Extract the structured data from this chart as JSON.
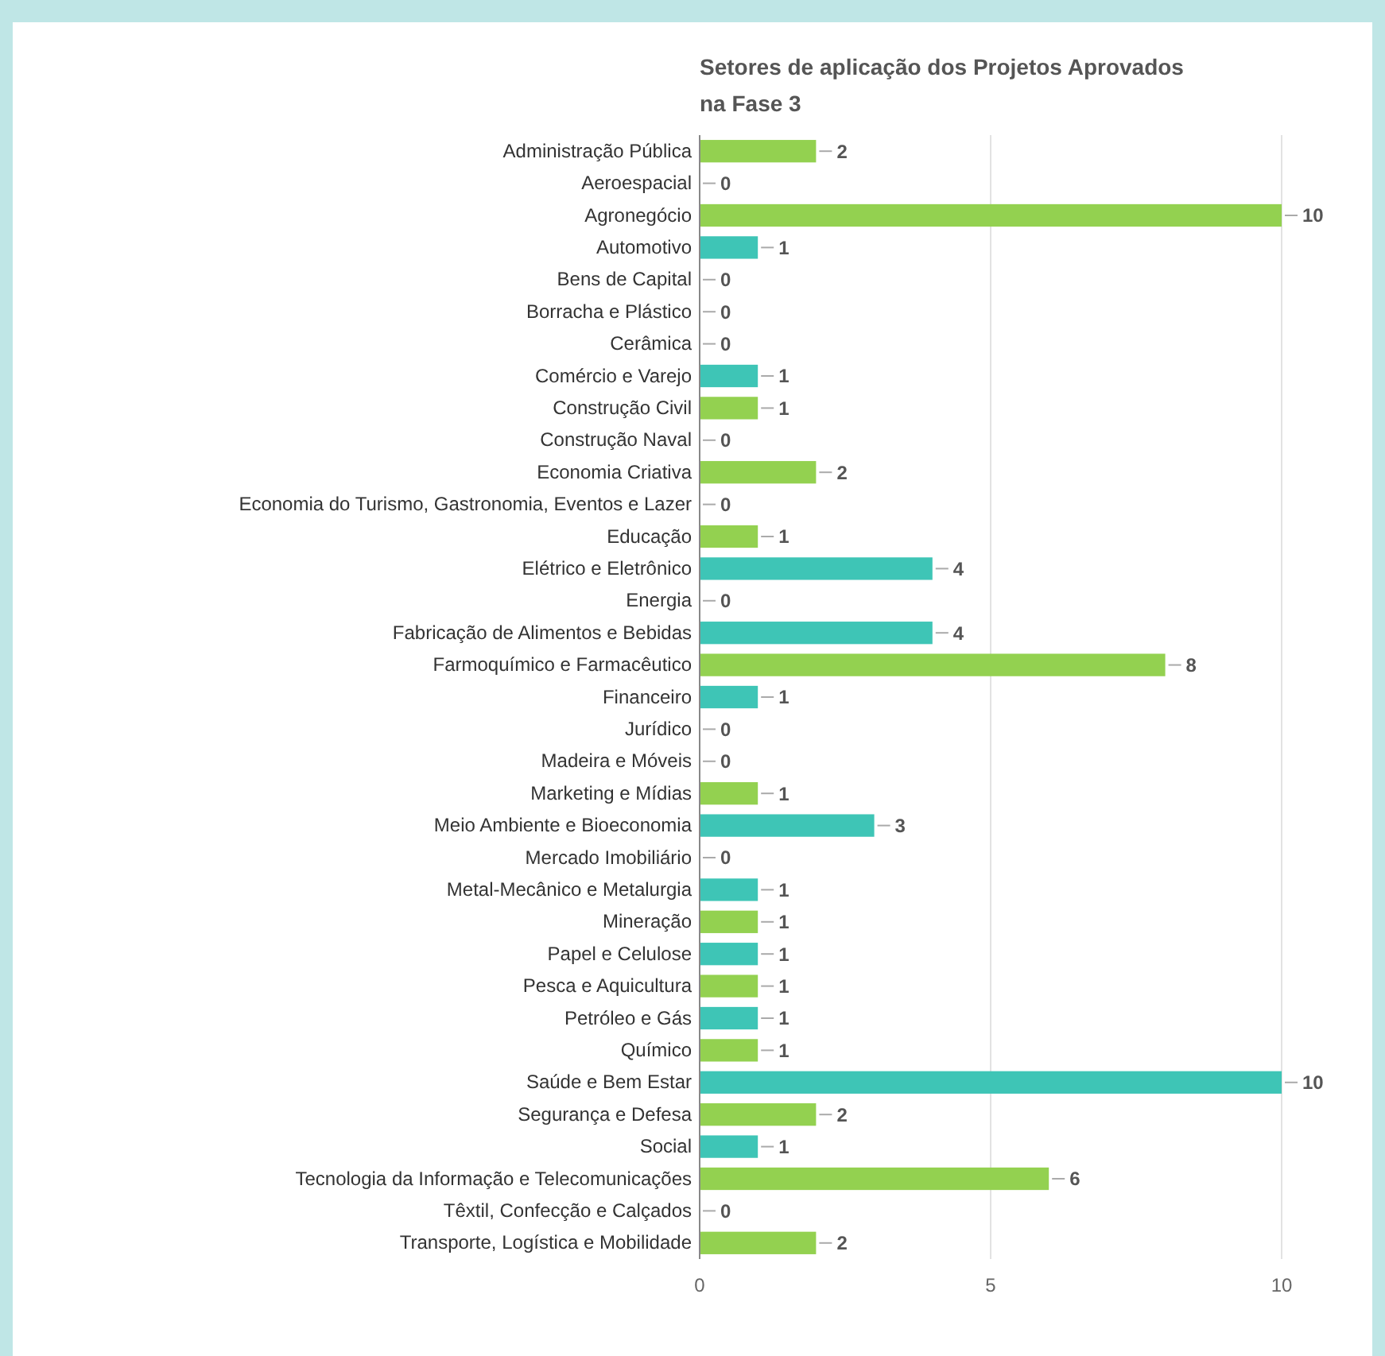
{
  "chart_data": {
    "type": "bar",
    "orientation": "horizontal",
    "title": "Setores de aplicação dos Projetos Aprovados na Fase 3",
    "categories": [
      "Administração Pública",
      "Aeroespacial",
      "Agronegócio",
      "Automotivo",
      "Bens de Capital",
      "Borracha e Plástico",
      "Cerâmica",
      "Comércio e Varejo",
      "Construção Civil",
      "Construção Naval",
      "Economia Criativa",
      "Economia do Turismo, Gastronomia, Eventos e Lazer",
      "Educação",
      "Elétrico e Eletrônico",
      "Energia",
      "Fabricação de Alimentos e Bebidas",
      "Farmoquímico e Farmacêutico",
      "Financeiro",
      "Jurídico",
      "Madeira e Móveis",
      "Marketing e Mídias",
      "Meio Ambiente e Bioeconomia",
      "Mercado Imobiliário",
      "Metal-Mecânico e Metalurgia",
      "Mineração",
      "Papel e Celulose",
      "Pesca e Aquicultura",
      "Petróleo e Gás",
      "Químico",
      "Saúde e Bem Estar",
      "Segurança e Defesa",
      "Social",
      "Tecnologia da Informação e Telecomunicações",
      "Têxtil, Confecção e Calçados",
      "Transporte, Logística e Mobilidade"
    ],
    "values": [
      2,
      0,
      10,
      1,
      0,
      0,
      0,
      1,
      1,
      0,
      2,
      0,
      1,
      4,
      0,
      4,
      8,
      1,
      0,
      0,
      1,
      3,
      0,
      1,
      1,
      1,
      1,
      1,
      1,
      10,
      2,
      1,
      6,
      0,
      2
    ],
    "colors": [
      "#93d150",
      "#3ec5b6",
      "#93d150",
      "#3ec5b6",
      "#3ec5b6",
      "#3ec5b6",
      "#3ec5b6",
      "#3ec5b6",
      "#93d150",
      "#3ec5b6",
      "#93d150",
      "#3ec5b6",
      "#93d150",
      "#3ec5b6",
      "#3ec5b6",
      "#3ec5b6",
      "#93d150",
      "#3ec5b6",
      "#3ec5b6",
      "#3ec5b6",
      "#93d150",
      "#3ec5b6",
      "#3ec5b6",
      "#3ec5b6",
      "#93d150",
      "#3ec5b6",
      "#93d150",
      "#3ec5b6",
      "#93d150",
      "#3ec5b6",
      "#93d150",
      "#3ec5b6",
      "#93d150",
      "#3ec5b6",
      "#93d150"
    ],
    "xlim": [
      0,
      10
    ],
    "xticks": [
      0,
      5,
      10
    ],
    "grid": "x",
    "data_labels": true
  }
}
